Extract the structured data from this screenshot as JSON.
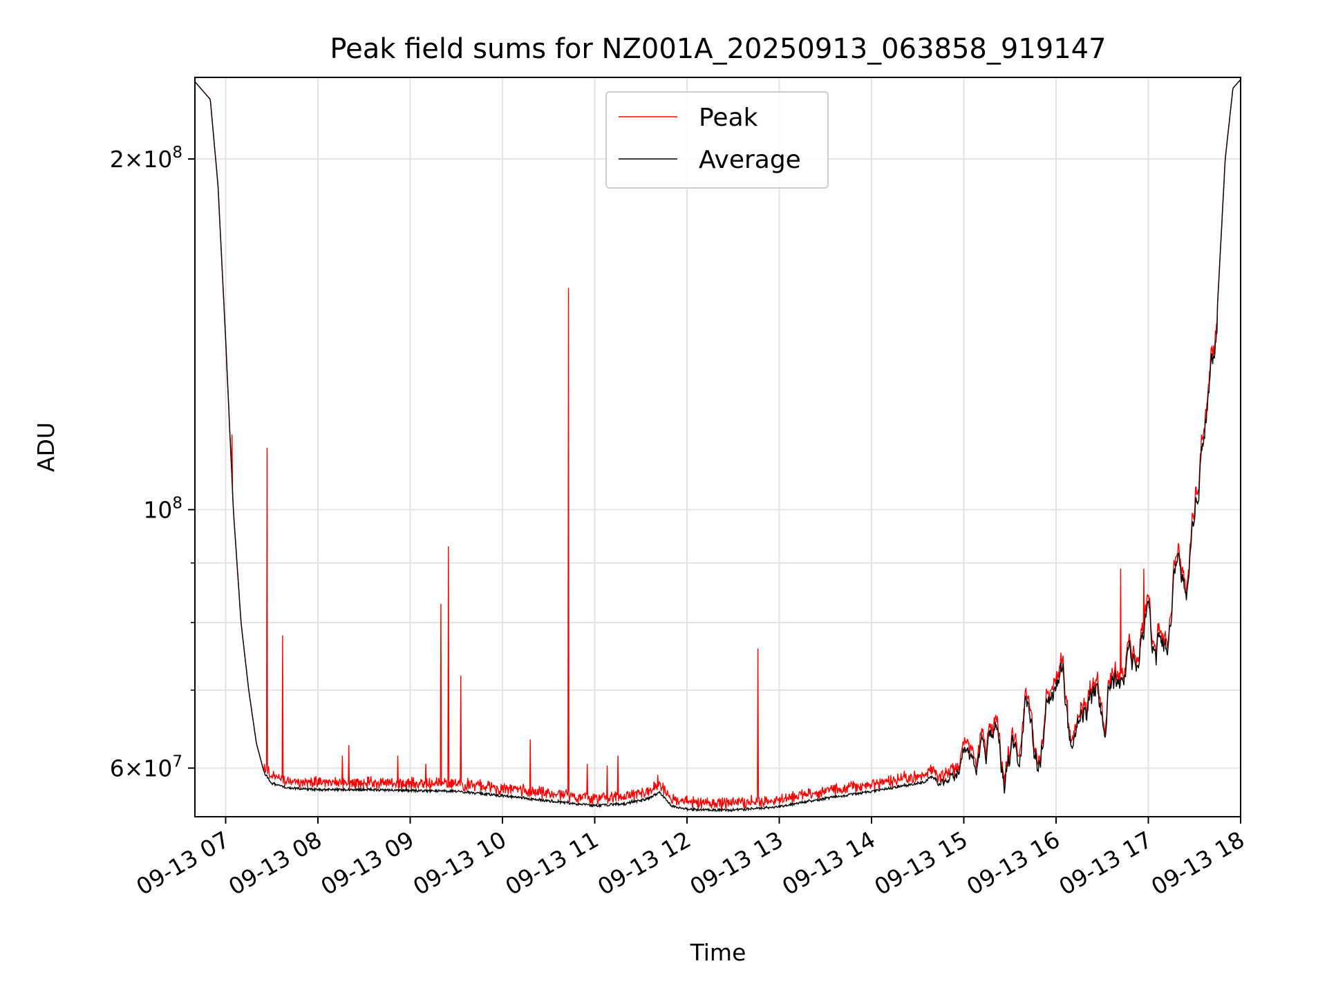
{
  "chart_data": {
    "type": "line",
    "title": "Peak field sums for NZ001A_20250913_063858_919147",
    "xlabel": "Time",
    "ylabel": "ADU",
    "y_scale": "log",
    "xlim": [
      "2025-09-13 06:40",
      "2025-09-13 18:00"
    ],
    "ylim": [
      54500000,
      235000000
    ],
    "grid": true,
    "legend_placement": "upper center",
    "x_ticks": [
      "09-13 07",
      "09-13 08",
      "09-13 09",
      "09-13 10",
      "09-13 11",
      "09-13 12",
      "09-13 13",
      "09-13 14",
      "09-13 15",
      "09-13 16",
      "09-13 17",
      "09-13 18"
    ],
    "y_ticks": [
      {
        "value": 200000000,
        "mantissa": "2",
        "exp": "8"
      },
      {
        "value": 100000000,
        "mantissa": "",
        "exp": "8"
      },
      {
        "value": 60000000,
        "mantissa": "6",
        "exp": "7"
      }
    ],
    "series": [
      {
        "name": "Peak",
        "color": "#ff0000",
        "baseline": [
          [
            "2025-09-13 06:40",
            233000000
          ],
          [
            "2025-09-13 06:50",
            225000000
          ],
          [
            "2025-09-13 06:55",
            190000000
          ],
          [
            "2025-09-13 07:00",
            140000000
          ],
          [
            "2025-09-13 07:05",
            100000000
          ],
          [
            "2025-09-13 07:10",
            80000000
          ],
          [
            "2025-09-13 07:15",
            70000000
          ],
          [
            "2025-09-13 07:20",
            63000000
          ],
          [
            "2025-09-13 07:25",
            59500000
          ],
          [
            "2025-09-13 07:30",
            58200000
          ],
          [
            "2025-09-13 07:40",
            57700000
          ],
          [
            "2025-09-13 08:00",
            57500000
          ],
          [
            "2025-09-13 08:30",
            57500000
          ],
          [
            "2025-09-13 09:00",
            57400000
          ],
          [
            "2025-09-13 09:30",
            57300000
          ],
          [
            "2025-09-13 10:00",
            56800000
          ],
          [
            "2025-09-13 10:30",
            56200000
          ],
          [
            "2025-09-13 11:00",
            55700000
          ],
          [
            "2025-09-13 11:20",
            55900000
          ],
          [
            "2025-09-13 11:35",
            56500000
          ],
          [
            "2025-09-13 11:42",
            57200000
          ],
          [
            "2025-09-13 11:50",
            55700000
          ],
          [
            "2025-09-13 12:00",
            55300000
          ],
          [
            "2025-09-13 12:30",
            55200000
          ],
          [
            "2025-09-13 13:00",
            55600000
          ],
          [
            "2025-09-13 13:30",
            56500000
          ],
          [
            "2025-09-13 14:00",
            57300000
          ],
          [
            "2025-09-13 14:30",
            58200000
          ],
          [
            "2025-09-13 14:45",
            59200000
          ],
          [
            "2025-09-13 15:00",
            60200000
          ],
          [
            "2025-09-13 15:15",
            61200000
          ],
          [
            "2025-09-13 15:30",
            63500000
          ],
          [
            "2025-09-13 15:45",
            66000000
          ],
          [
            "2025-09-13 16:00",
            68000000
          ],
          [
            "2025-09-13 16:15",
            69000000
          ],
          [
            "2025-09-13 16:30",
            71000000
          ],
          [
            "2025-09-13 16:45",
            73000000
          ],
          [
            "2025-09-13 17:00",
            76000000
          ],
          [
            "2025-09-13 17:15",
            80000000
          ],
          [
            "2025-09-13 17:25",
            88000000
          ],
          [
            "2025-09-13 17:30",
            98000000
          ],
          [
            "2025-09-13 17:35",
            112000000
          ],
          [
            "2025-09-13 17:40",
            122000000
          ],
          [
            "2025-09-13 17:45",
            150000000
          ],
          [
            "2025-09-13 17:50",
            200000000
          ],
          [
            "2025-09-13 17:55",
            230000000
          ],
          [
            "2025-09-13 18:00",
            234000000
          ]
        ],
        "spikes": [
          [
            "2025-09-13 07:04",
            116000000
          ],
          [
            "2025-09-13 07:27",
            113000000
          ],
          [
            "2025-09-13 07:37",
            78000000
          ],
          [
            "2025-09-13 08:16",
            61500000
          ],
          [
            "2025-09-13 08:20",
            62800000
          ],
          [
            "2025-09-13 08:52",
            61500000
          ],
          [
            "2025-09-13 09:10",
            60500000
          ],
          [
            "2025-09-13 09:20",
            83000000
          ],
          [
            "2025-09-13 09:25",
            93000000
          ],
          [
            "2025-09-13 09:33",
            72000000
          ],
          [
            "2025-09-13 10:18",
            63500000
          ],
          [
            "2025-09-13 10:43",
            155000000
          ],
          [
            "2025-09-13 10:55",
            60500000
          ],
          [
            "2025-09-13 11:08",
            60300000
          ],
          [
            "2025-09-13 11:15",
            61500000
          ],
          [
            "2025-09-13 11:41",
            59200000
          ],
          [
            "2025-09-13 12:46",
            76000000
          ],
          [
            "2025-09-13 16:42",
            89000000
          ],
          [
            "2025-09-13 16:57",
            89000000
          ]
        ]
      },
      {
        "name": "Average",
        "color": "#000000"
      }
    ]
  }
}
